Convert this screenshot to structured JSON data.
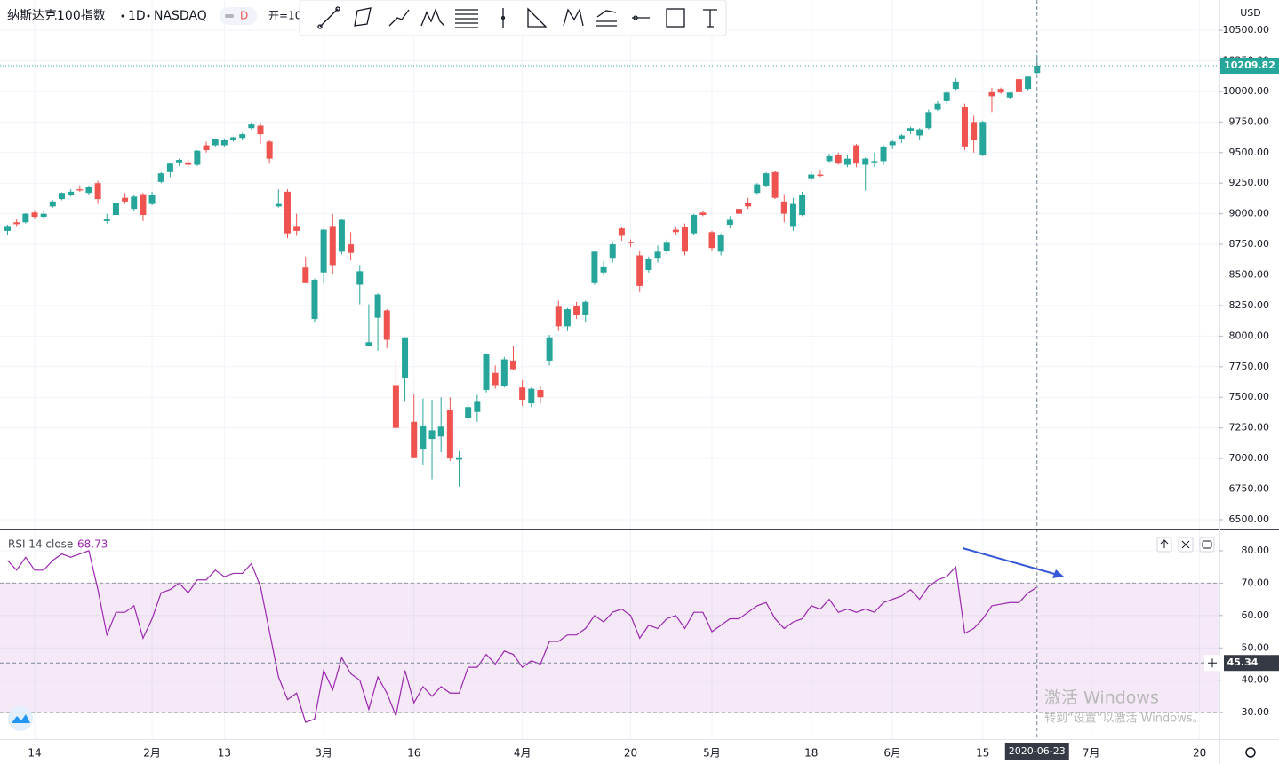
{
  "header": {
    "symbol": "纳斯达克100指数",
    "interval": "1D",
    "exchange": "NASDAQ",
    "badge": "D",
    "open_label": "开=10"
  },
  "watermark": {
    "title": "激活 Windows",
    "subtitle": "转到“设置”以激活 Windows。"
  },
  "chart_data": [
    {
      "type": "candlestick",
      "currency": "USD",
      "up_color": "#26a69a",
      "down_color": "#ef5350",
      "grid": true,
      "ylim": [
        6420,
        10747
      ],
      "yticks": [
        {
          "value": 6500,
          "label": "6500.00"
        },
        {
          "value": 6750,
          "label": "6750.00"
        },
        {
          "value": 7000,
          "label": "7000.00"
        },
        {
          "value": 7250,
          "label": "7250.00"
        },
        {
          "value": 7500,
          "label": "7500.00"
        },
        {
          "value": 7750,
          "label": "7750.00"
        },
        {
          "value": 8000,
          "label": "8000.00"
        },
        {
          "value": 8250,
          "label": "8250.00"
        },
        {
          "value": 8500,
          "label": "8500.00"
        },
        {
          "value": 8750,
          "label": "8750.00"
        },
        {
          "value": 9000,
          "label": "9000.00"
        },
        {
          "value": 9250,
          "label": "9250.00"
        },
        {
          "value": 9500,
          "label": "9500.00"
        },
        {
          "value": 9750,
          "label": "9750.00"
        },
        {
          "value": 10000,
          "label": "10000.00"
        },
        {
          "value": 10250,
          "label": "10250.00"
        },
        {
          "value": 10500,
          "label": "10500.00"
        }
      ],
      "last_price": 10209.82,
      "crosshair_date": "2020-06-23",
      "categories": [
        null,
        null,
        null,
        "14",
        null,
        null,
        null,
        null,
        null,
        null,
        null,
        null,
        null,
        null,
        null,
        null,
        "2月",
        null,
        null,
        null,
        null,
        null,
        null,
        null,
        "13",
        null,
        null,
        null,
        null,
        null,
        null,
        null,
        null,
        null,
        null,
        "3月",
        null,
        null,
        null,
        null,
        null,
        null,
        null,
        null,
        null,
        "16",
        null,
        null,
        null,
        null,
        null,
        null,
        null,
        null,
        null,
        null,
        null,
        "4月",
        null,
        null,
        null,
        null,
        null,
        null,
        null,
        null,
        null,
        null,
        null,
        "20",
        null,
        null,
        null,
        null,
        null,
        null,
        null,
        null,
        "5月",
        null,
        null,
        null,
        null,
        null,
        null,
        null,
        null,
        null,
        null,
        "18",
        null,
        null,
        null,
        null,
        null,
        null,
        null,
        null,
        "6月",
        null,
        null,
        null,
        null,
        null,
        null,
        null,
        null,
        null,
        "15",
        null,
        null,
        null,
        null,
        null,
        null,
        null,
        null,
        null,
        null,
        null,
        "7月",
        null,
        null,
        null,
        null,
        null,
        null,
        null,
        null,
        null,
        null,
        null,
        "20"
      ],
      "open": [
        8860,
        8930,
        8930,
        9010,
        8975,
        9060,
        9120,
        9150,
        9200,
        9170,
        9250,
        8940,
        8990,
        9130,
        9040,
        9160,
        9080,
        9260,
        9340,
        9420,
        9420,
        9400,
        9560,
        9560,
        9560,
        9600,
        9620,
        9700,
        9720,
        9590,
        9060,
        9180,
        8900,
        8560,
        8140,
        8520,
        8900,
        8690,
        8750,
        8420,
        7920,
        8150,
        8210,
        7600,
        7660,
        7300,
        7080,
        7160,
        7180,
        7400,
        6990,
        7330,
        7380,
        7560,
        7700,
        7590,
        7800,
        7580,
        7450,
        7560,
        7800,
        8240,
        8080,
        8250,
        8170,
        8440,
        8520,
        8640,
        8880,
        8770,
        8660,
        8540,
        8640,
        8700,
        8870,
        8890,
        8840,
        9010,
        8850,
        8690,
        8910,
        9040,
        9090,
        9170,
        9230,
        9340,
        9100,
        8900,
        8990,
        9290,
        9320,
        9430,
        9480,
        9400,
        9560,
        9400,
        9420,
        9430,
        9560,
        9610,
        9680,
        9640,
        9700,
        9850,
        9920,
        10020,
        9870,
        9750,
        9480,
        10000,
        10020,
        9950,
        10100,
        10020,
        10150,
        null,
        null,
        null,
        null,
        null,
        null,
        null,
        null,
        null,
        null,
        null,
        null,
        null,
        null,
        null,
        null,
        null,
        null
      ],
      "high": [
        8910,
        8960,
        9005,
        9030,
        9020,
        9110,
        9175,
        9200,
        9230,
        9230,
        9270,
        9000,
        9100,
        9170,
        9150,
        9170,
        9180,
        9340,
        9420,
        9450,
        9440,
        9520,
        9590,
        9615,
        9615,
        9630,
        9660,
        9740,
        9740,
        9600,
        9200,
        9200,
        9000,
        8650,
        8470,
        8880,
        9000,
        8960,
        8850,
        8580,
        8260,
        8350,
        8220,
        7800,
        7990,
        7530,
        7490,
        7480,
        7500,
        7500,
        7060,
        7440,
        7520,
        7860,
        7760,
        7830,
        7920,
        7640,
        7580,
        7590,
        8010,
        8290,
        8230,
        8280,
        8290,
        8700,
        8610,
        8770,
        8890,
        8790,
        8700,
        8650,
        8740,
        8790,
        8890,
        8920,
        9000,
        9020,
        8860,
        8840,
        8980,
        9050,
        9130,
        9250,
        9340,
        9350,
        9160,
        9130,
        9180,
        9340,
        9360,
        9490,
        9500,
        9480,
        9570,
        9460,
        9500,
        9560,
        9600,
        9650,
        9710,
        9700,
        9850,
        9920,
        10010,
        10110,
        9900,
        9800,
        9760,
        10030,
        10030,
        10000,
        10120,
        10130,
        10300,
        null,
        null,
        null,
        null,
        null,
        null,
        null,
        null,
        null,
        null,
        null,
        null,
        null,
        null,
        null,
        null,
        null,
        null
      ],
      "low": [
        8830,
        8900,
        8920,
        8960,
        8960,
        9050,
        9110,
        9140,
        9180,
        9150,
        9080,
        8920,
        8970,
        9080,
        9020,
        8940,
        9070,
        9250,
        9300,
        9390,
        9380,
        9390,
        9500,
        9550,
        9550,
        9590,
        9600,
        9690,
        9570,
        9410,
        9050,
        8800,
        8820,
        8430,
        8110,
        8430,
        8510,
        8670,
        8620,
        8260,
        7920,
        7880,
        7900,
        7220,
        7470,
        7000,
        6950,
        6830,
        7050,
        6980,
        6770,
        7300,
        7300,
        7540,
        7570,
        7580,
        7720,
        7430,
        7420,
        7450,
        7760,
        8040,
        8040,
        8140,
        8110,
        8420,
        8500,
        8600,
        8780,
        8730,
        8360,
        8520,
        8600,
        8670,
        8830,
        8660,
        8830,
        8980,
        8700,
        8660,
        8880,
        8980,
        9040,
        9160,
        9220,
        9120,
        8930,
        8860,
        8980,
        9270,
        9300,
        9420,
        9400,
        9380,
        9380,
        9190,
        9380,
        9400,
        9530,
        9580,
        9650,
        9600,
        9690,
        9840,
        9900,
        10010,
        9520,
        9500,
        9470,
        9830,
        9980,
        9940,
        9970,
        10010,
        10140,
        null,
        null,
        null,
        null,
        null,
        null,
        null,
        null,
        null,
        null,
        null,
        null,
        null,
        null,
        null,
        null,
        null,
        null
      ],
      "close": [
        8900,
        8915,
        9000,
        8975,
        9000,
        9100,
        9170,
        9180,
        9190,
        9220,
        9120,
        8960,
        9090,
        9100,
        9140,
        8990,
        9150,
        9330,
        9410,
        9440,
        9400,
        9515,
        9520,
        9610,
        9600,
        9625,
        9650,
        9730,
        9650,
        9450,
        9080,
        8840,
        8860,
        8440,
        8460,
        8870,
        8580,
        8950,
        8680,
        8530,
        7950,
        8340,
        7970,
        7250,
        7990,
        7010,
        7270,
        7230,
        7260,
        7000,
        7010,
        7420,
        7470,
        7850,
        7600,
        7810,
        7730,
        7480,
        7570,
        7500,
        7990,
        8080,
        8220,
        8170,
        8280,
        8690,
        8570,
        8750,
        8820,
        8760,
        8410,
        8630,
        8690,
        8770,
        8850,
        8690,
        8990,
        8990,
        8720,
        8830,
        8950,
        9000,
        9060,
        9240,
        9330,
        9130,
        9000,
        9080,
        9150,
        9320,
        9310,
        9470,
        9410,
        9450,
        9410,
        9450,
        9430,
        9550,
        9590,
        9640,
        9700,
        9690,
        9830,
        9900,
        9990,
        10080,
        9550,
        9600,
        9750,
        9960,
        9990,
        9990,
        10000,
        10120,
        10209.82,
        null,
        null,
        null,
        null,
        null,
        null,
        null,
        null,
        null,
        null,
        null,
        null,
        null,
        null,
        null,
        null,
        null,
        null
      ]
    },
    {
      "type": "line",
      "title": "RSI 14 close",
      "color": "#9c27b0",
      "band": [
        30,
        70
      ],
      "band_color": "#9c27b0",
      "crosshair_value": 45.34,
      "grid": true,
      "ylim": [
        21.8,
        86.3
      ],
      "yticks": [
        {
          "value": 30,
          "label": "30.00"
        },
        {
          "value": 40,
          "label": "40.00"
        },
        {
          "value": 50,
          "label": "50.00"
        },
        {
          "value": 60,
          "label": "60.00"
        },
        {
          "value": 70,
          "label": "70.00"
        },
        {
          "value": 80,
          "label": "80.00"
        }
      ],
      "values": [
        77,
        74,
        78,
        74,
        74,
        77,
        79,
        78,
        79,
        80,
        68,
        54,
        61,
        61,
        63,
        53,
        59,
        67,
        68,
        70,
        67,
        71,
        71,
        74,
        72,
        73,
        73,
        76,
        69,
        55,
        41,
        34,
        36,
        27,
        28,
        43,
        37,
        47,
        42,
        40,
        31,
        41,
        36,
        29,
        43,
        33,
        38,
        35,
        38,
        36,
        36,
        44,
        44,
        48,
        45,
        49,
        48,
        44,
        46,
        45,
        52,
        52,
        54,
        54,
        56,
        60,
        58,
        61,
        62,
        60,
        53,
        57,
        56,
        59,
        60,
        56,
        61,
        61,
        55,
        57,
        59,
        59,
        61,
        63,
        64,
        59,
        56,
        58,
        59,
        63,
        62,
        65,
        61,
        62,
        61,
        62,
        61,
        64,
        65,
        66,
        68,
        65,
        69,
        71,
        72,
        75,
        54.5,
        56,
        59,
        63,
        63.5,
        64,
        64,
        67,
        68.73
      ]
    }
  ]
}
